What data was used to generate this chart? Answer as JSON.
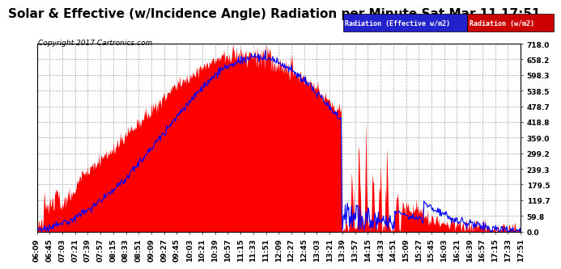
{
  "title": "Solar & Effective (w/Incidence Angle) Radiation per Minute Sat Mar 11 17:51",
  "copyright": "Copyright 2017 Cartronics.com",
  "legend_blue": "Radiation (Effective w/m2)",
  "legend_red": "Radiation (w/m2)",
  "yticks": [
    0.0,
    59.8,
    119.7,
    179.5,
    239.3,
    299.2,
    359.0,
    418.8,
    478.7,
    538.5,
    598.3,
    658.2,
    718.0
  ],
  "ymin": 0.0,
  "ymax": 718.0,
  "bg_color": "#ffffff",
  "plot_bg_color": "#ffffff",
  "grid_color": "#aaaaaa",
  "red_color": "#ff0000",
  "blue_color": "#0000ff",
  "xtick_labels": [
    "06:09",
    "06:45",
    "07:03",
    "07:21",
    "07:39",
    "07:57",
    "08:15",
    "08:33",
    "08:51",
    "09:09",
    "09:27",
    "09:45",
    "10:03",
    "10:21",
    "10:39",
    "10:57",
    "11:15",
    "11:33",
    "11:51",
    "12:09",
    "12:27",
    "12:45",
    "13:03",
    "13:21",
    "13:39",
    "13:57",
    "14:15",
    "14:33",
    "14:51",
    "15:09",
    "15:27",
    "15:45",
    "16:03",
    "16:21",
    "16:39",
    "16:57",
    "17:15",
    "17:33",
    "17:51"
  ],
  "title_fontsize": 11,
  "tick_fontsize": 6.5,
  "copyright_fontsize": 6.5
}
